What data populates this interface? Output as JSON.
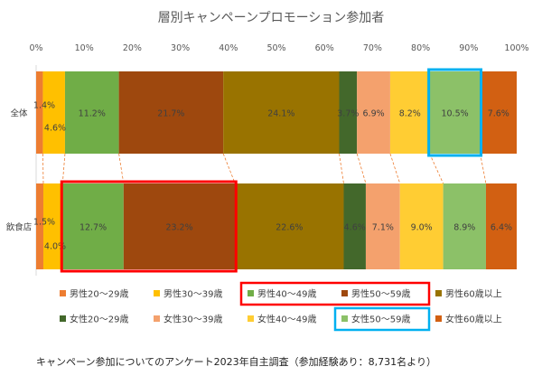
{
  "chart_data": {
    "type": "bar",
    "orientation": "horizontal",
    "stacked": "percent",
    "title": "層別キャンペーンプロモーション参加者",
    "xlim": [
      0,
      100
    ],
    "x_ticks": [
      "0%",
      "10%",
      "20%",
      "30%",
      "40%",
      "50%",
      "60%",
      "70%",
      "80%",
      "90%",
      "100%"
    ],
    "categories": [
      "全体",
      "飲食店"
    ],
    "series": [
      {
        "name": "男性20～29歳",
        "color": "#ED7D31",
        "values": [
          1.4,
          1.5
        ]
      },
      {
        "name": "男性30～39歳",
        "color": "#FFC000",
        "values": [
          4.6,
          4.0
        ]
      },
      {
        "name": "男性40～49歳",
        "color": "#70AD47",
        "values": [
          11.2,
          12.7
        ]
      },
      {
        "name": "男性50～59歳",
        "color": "#9E480E",
        "values": [
          21.7,
          23.2
        ]
      },
      {
        "name": "男性60歳以上",
        "color": "#997300",
        "values": [
          24.1,
          22.6
        ]
      },
      {
        "name": "女性20～29歳",
        "color": "#43682B",
        "values": [
          3.7,
          4.6
        ]
      },
      {
        "name": "女性30～39歳",
        "color": "#F4A16D",
        "values": [
          6.9,
          7.1
        ]
      },
      {
        "name": "女性40～49歳",
        "color": "#FFCD33",
        "values": [
          8.2,
          9.0
        ]
      },
      {
        "name": "女性50～59歳",
        "color": "#8CC168",
        "values": [
          10.5,
          8.9
        ]
      },
      {
        "name": "女性60歳以上",
        "color": "#D26012",
        "values": [
          7.6,
          6.4
        ]
      }
    ],
    "labels": [
      [
        "1.4%",
        "4.6%",
        "11.2%",
        "21.7%",
        "24.1%",
        "3.7%",
        "6.9%",
        "8.2%",
        "10.5%",
        "7.6%"
      ],
      [
        "1.5%",
        "4.0%",
        "12.7%",
        "23.2%",
        "22.6%",
        "4.6%",
        "7.1%",
        "9.0%",
        "8.9%",
        "6.4%"
      ]
    ],
    "legend_position": "bottom",
    "highlights": [
      {
        "category": "全体",
        "series": "女性50～59歳",
        "color": "#00B0F0"
      },
      {
        "category": "飲食店",
        "series": "男性40～49歳",
        "color": "#FF0000"
      },
      {
        "category": "飲食店",
        "series": "男性50～59歳",
        "color": "#FF0000"
      }
    ],
    "legend_highlights": [
      {
        "series": [
          "男性40～49歳",
          "男性50～59歳"
        ],
        "color": "#FF0000"
      },
      {
        "series": [
          "女性50～59歳"
        ],
        "color": "#00B0F0"
      }
    ]
  },
  "footnote": "キャンペーン参加についてのアンケート2023年自主調査（参加経験あり：8,731名より）"
}
